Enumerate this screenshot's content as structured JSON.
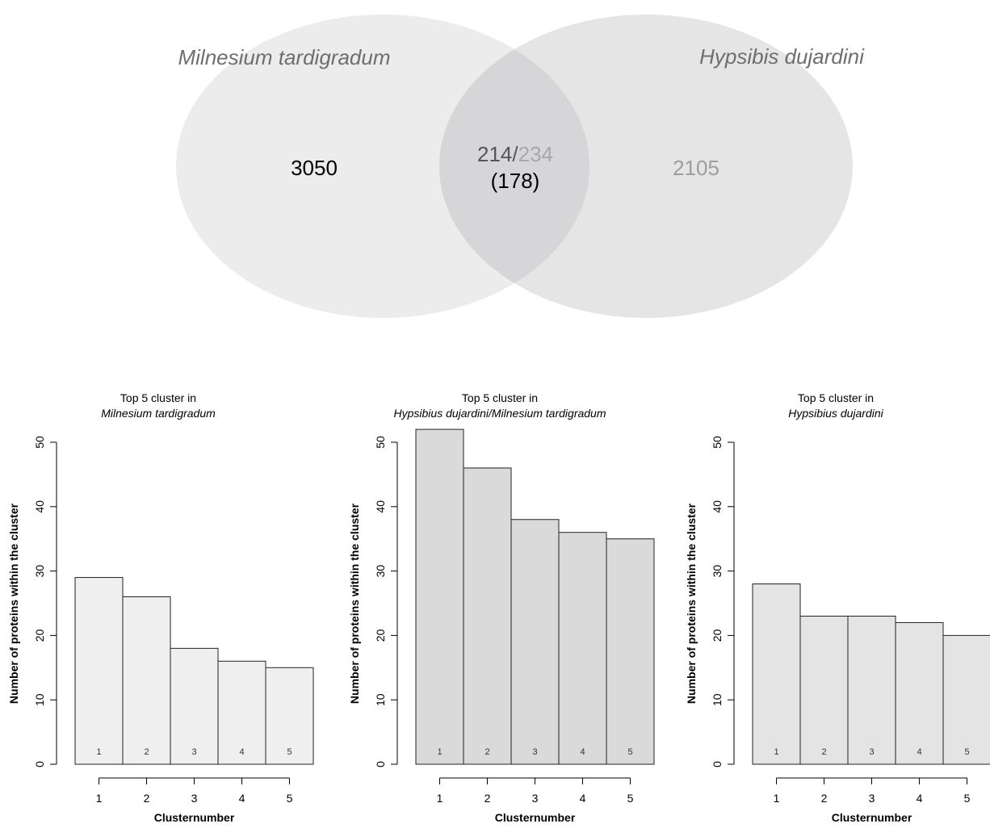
{
  "venn": {
    "left_label": "Milnesium tardigradum",
    "right_label": "Hypsibis dujardini",
    "left_only": "3050",
    "right_only": "2105",
    "overlap_left": "214",
    "overlap_sep": "/",
    "overlap_right": "234",
    "overlap_common": "(178)",
    "colors": {
      "left": "#ececec",
      "right": "#e0e0e2",
      "overlap": "#d6d6d8",
      "right_text": "#9e9e9e",
      "left_text": "#000000"
    }
  },
  "chart_data": [
    {
      "type": "bar",
      "title": "Top 5 cluster in",
      "subtitle": "Milnesium tardigradum",
      "categories": [
        "1",
        "2",
        "3",
        "4",
        "5"
      ],
      "values": [
        29,
        26,
        18,
        16,
        15
      ],
      "xlabel": "Clusternumber",
      "ylabel": "Number of proteins within the cluster",
      "ylim": [
        0,
        50
      ],
      "yticks": [
        "0",
        "10",
        "20",
        "30",
        "40",
        "50"
      ],
      "bar_color": "#efefef"
    },
    {
      "type": "bar",
      "title": "Top 5 cluster in",
      "subtitle": "Hypsibius dujardini/Milnesium tardigradum",
      "categories": [
        "1",
        "2",
        "3",
        "4",
        "5"
      ],
      "values": [
        52,
        46,
        38,
        36,
        35
      ],
      "xlabel": "Clusternumber",
      "ylabel": "Number of proteins within the cluster",
      "ylim": [
        0,
        50
      ],
      "yticks": [
        "0",
        "10",
        "20",
        "30",
        "40",
        "50"
      ],
      "bar_color": "#dadadb"
    },
    {
      "type": "bar",
      "title": "Top 5 cluster in",
      "subtitle": "Hypsibius dujardini",
      "categories": [
        "1",
        "2",
        "3",
        "4",
        "5"
      ],
      "values": [
        28,
        23,
        23,
        22,
        20
      ],
      "xlabel": "Clusternumber",
      "ylabel": "Number of proteins within the cluster",
      "ylim": [
        0,
        50
      ],
      "yticks": [
        "0",
        "10",
        "20",
        "30",
        "40",
        "50"
      ],
      "bar_color": "#e4e4e5"
    }
  ]
}
